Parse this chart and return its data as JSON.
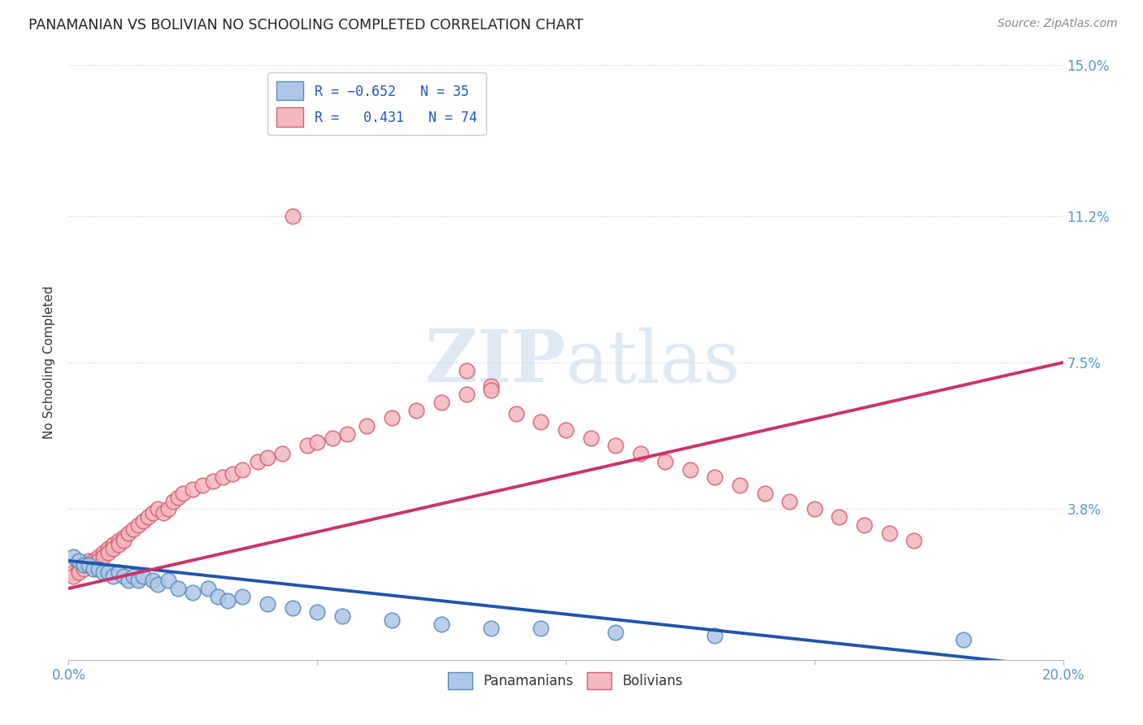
{
  "title": "PANAMANIAN VS BOLIVIAN NO SCHOOLING COMPLETED CORRELATION CHART",
  "source": "Source: ZipAtlas.com",
  "ylabel": "No Schooling Completed",
  "xlim": [
    0.0,
    0.2
  ],
  "ylim": [
    0.0,
    0.15
  ],
  "ytick_vals": [
    0.038,
    0.075,
    0.112,
    0.15
  ],
  "ytick_labels": [
    "3.8%",
    "7.5%",
    "11.2%",
    "15.0%"
  ],
  "blue_face": "#aec6e8",
  "blue_edge": "#5b8db8",
  "pink_face": "#f4b8c0",
  "pink_edge": "#d96070",
  "blue_line": "#2255aa",
  "pink_line": "#cc3366",
  "watermark_color": "#dce8f5",
  "title_color": "#222222",
  "source_color": "#888888",
  "tick_color": "#5599cc",
  "pan_x": [
    0.001,
    0.002,
    0.003,
    0.004,
    0.005,
    0.006,
    0.007,
    0.008,
    0.009,
    0.01,
    0.011,
    0.012,
    0.013,
    0.014,
    0.015,
    0.017,
    0.018,
    0.02,
    0.022,
    0.025,
    0.028,
    0.03,
    0.032,
    0.035,
    0.04,
    0.045,
    0.05,
    0.055,
    0.065,
    0.075,
    0.085,
    0.095,
    0.11,
    0.13,
    0.18
  ],
  "pan_y": [
    0.026,
    0.025,
    0.024,
    0.024,
    0.023,
    0.023,
    0.022,
    0.022,
    0.021,
    0.022,
    0.021,
    0.02,
    0.021,
    0.02,
    0.021,
    0.02,
    0.019,
    0.02,
    0.018,
    0.017,
    0.018,
    0.016,
    0.015,
    0.016,
    0.014,
    0.013,
    0.012,
    0.011,
    0.01,
    0.009,
    0.008,
    0.008,
    0.007,
    0.006,
    0.005
  ],
  "bol_x": [
    0.001,
    0.001,
    0.002,
    0.002,
    0.003,
    0.003,
    0.004,
    0.004,
    0.005,
    0.005,
    0.006,
    0.006,
    0.007,
    0.007,
    0.008,
    0.008,
    0.009,
    0.009,
    0.01,
    0.01,
    0.011,
    0.011,
    0.012,
    0.013,
    0.014,
    0.015,
    0.016,
    0.017,
    0.018,
    0.019,
    0.02,
    0.021,
    0.022,
    0.023,
    0.025,
    0.027,
    0.029,
    0.031,
    0.033,
    0.035,
    0.038,
    0.04,
    0.043,
    0.045,
    0.048,
    0.05,
    0.053,
    0.056,
    0.06,
    0.065,
    0.07,
    0.075,
    0.08,
    0.085,
    0.09,
    0.095,
    0.1,
    0.105,
    0.11,
    0.115,
    0.12,
    0.125,
    0.13,
    0.135,
    0.14,
    0.145,
    0.15,
    0.155,
    0.16,
    0.165,
    0.17,
    0.08,
    0.085
  ],
  "bol_y": [
    0.022,
    0.021,
    0.023,
    0.022,
    0.024,
    0.023,
    0.025,
    0.024,
    0.025,
    0.024,
    0.026,
    0.025,
    0.027,
    0.026,
    0.028,
    0.027,
    0.029,
    0.028,
    0.03,
    0.029,
    0.031,
    0.03,
    0.032,
    0.033,
    0.034,
    0.035,
    0.036,
    0.037,
    0.038,
    0.037,
    0.038,
    0.04,
    0.041,
    0.042,
    0.043,
    0.044,
    0.045,
    0.046,
    0.047,
    0.048,
    0.05,
    0.051,
    0.052,
    0.112,
    0.054,
    0.055,
    0.056,
    0.057,
    0.059,
    0.061,
    0.063,
    0.065,
    0.067,
    0.069,
    0.062,
    0.06,
    0.058,
    0.056,
    0.054,
    0.052,
    0.05,
    0.048,
    0.046,
    0.044,
    0.042,
    0.04,
    0.038,
    0.036,
    0.034,
    0.032,
    0.03,
    0.073,
    0.068
  ]
}
